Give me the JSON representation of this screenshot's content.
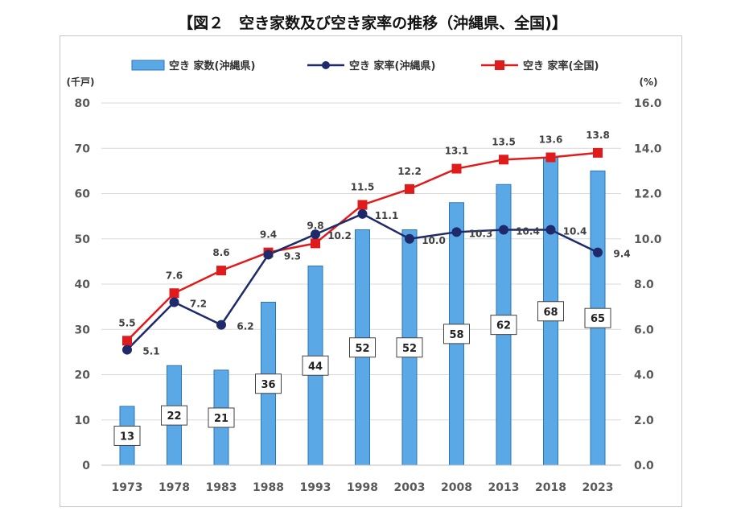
{
  "figure_title": "【図２　空き家数及び空き家率の推移（沖縄県、全国)】",
  "colors": {
    "bar_fill": "#5ba8e6",
    "bar_stroke": "#2e75b6",
    "okinawa_rate_line": "#1f2a6b",
    "national_rate_line": "#e01b1b",
    "grid": "#d9d9d9",
    "axis_text": "#595959"
  },
  "chart_data": {
    "type": "bar+line",
    "categories": [
      "1973",
      "1978",
      "1983",
      "1988",
      "1993",
      "1998",
      "2003",
      "2008",
      "2013",
      "2018",
      "2023"
    ],
    "series": [
      {
        "name": "空き 家数(沖縄県)",
        "type": "bar",
        "axis": "left",
        "values": [
          13,
          22,
          21,
          36,
          44,
          52,
          52,
          58,
          62,
          68,
          65
        ]
      },
      {
        "name": "空き 家率(沖縄県)",
        "type": "line",
        "axis": "right",
        "marker": "circle",
        "values": [
          5.1,
          7.2,
          6.2,
          9.3,
          10.2,
          11.1,
          10.0,
          10.3,
          10.4,
          10.4,
          9.4
        ]
      },
      {
        "name": "空き 家率(全国)",
        "type": "line",
        "axis": "right",
        "marker": "square",
        "values": [
          5.5,
          7.6,
          8.6,
          9.4,
          9.8,
          11.5,
          12.2,
          13.1,
          13.5,
          13.6,
          13.8
        ]
      }
    ],
    "left_axis": {
      "unit": "(千戸)",
      "min": 0,
      "max": 80,
      "ticks": [
        "0",
        "10",
        "20",
        "30",
        "40",
        "50",
        "60",
        "70",
        "80"
      ]
    },
    "right_axis": {
      "unit": "(%)",
      "min": 0,
      "max": 16,
      "ticks": [
        "0.0",
        "2.0",
        "4.0",
        "6.0",
        "8.0",
        "10.0",
        "12.0",
        "14.0",
        "16.0"
      ]
    },
    "gridlines": true,
    "legend_position": "top"
  }
}
